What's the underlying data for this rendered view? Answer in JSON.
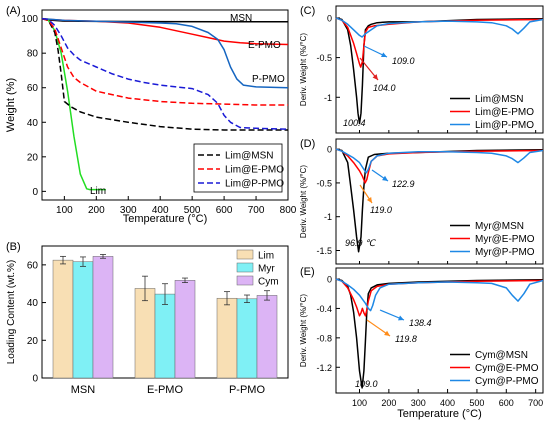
{
  "chart_data": [
    {
      "panel": "(A)",
      "type": "line",
      "xlabel": "Temperature (°C)",
      "ylabel": "Weight (%)",
      "xlim": [
        30,
        800
      ],
      "ylim": [
        -5,
        105
      ],
      "xticks": [
        100,
        200,
        300,
        400,
        500,
        600,
        700,
        800
      ],
      "yticks": [
        0,
        20,
        40,
        60,
        80,
        100
      ],
      "legend_position": "bottom-right",
      "legend": [
        "Lim@MSN",
        "Lim@E-PMO",
        "Lim@P-PMO"
      ],
      "annotations": [
        "MSN",
        "E-PMO",
        "P-PMO",
        "Lim"
      ],
      "series": [
        {
          "name": "MSN",
          "color": "#000000",
          "dash": "solid",
          "x": [
            30,
            50,
            100,
            200,
            400,
            600,
            800
          ],
          "y": [
            100,
            99.2,
            98.6,
            98.4,
            98.3,
            98.2,
            98.2
          ]
        },
        {
          "name": "E-PMO",
          "color": "#ff0000",
          "dash": "solid",
          "x": [
            30,
            60,
            100,
            200,
            300,
            400,
            500,
            550,
            600,
            650,
            700,
            800
          ],
          "y": [
            100,
            99.5,
            99,
            98.5,
            97.5,
            95,
            91,
            89,
            87,
            86,
            85.5,
            85
          ]
        },
        {
          "name": "P-PMO",
          "color": "#1565c0",
          "dash": "solid",
          "x": [
            30,
            100,
            200,
            300,
            400,
            450,
            500,
            550,
            580,
            600,
            620,
            640,
            660,
            700,
            800
          ],
          "y": [
            100,
            99,
            98.5,
            98,
            97.5,
            97,
            95.5,
            92,
            88,
            82,
            72,
            65,
            61.5,
            60.5,
            60
          ]
        },
        {
          "name": "Lim",
          "color": "#22dd22",
          "dash": "solid",
          "x": [
            30,
            50,
            70,
            90,
            110,
            130,
            150,
            170,
            180,
            230
          ],
          "y": [
            100,
            99,
            93,
            80,
            58,
            32,
            10,
            1.5,
            1,
            1
          ]
        },
        {
          "name": "Lim@MSN",
          "color": "#000000",
          "dash": "dashed",
          "x": [
            30,
            50,
            70,
            80,
            90,
            100,
            120,
            150,
            200,
            300,
            400,
            500,
            600,
            700,
            800
          ],
          "y": [
            100,
            99,
            92,
            82,
            68,
            52,
            49,
            46,
            43,
            40,
            37.5,
            36,
            35.5,
            35.5,
            35.5
          ]
        },
        {
          "name": "Lim@E-PMO",
          "color": "#ff0000",
          "dash": "dashed",
          "x": [
            30,
            50,
            70,
            90,
            110,
            130,
            150,
            200,
            300,
            400,
            500,
            600,
            700,
            800
          ],
          "y": [
            100,
            99,
            94,
            83,
            72,
            66,
            63,
            58,
            54,
            52,
            51,
            50.5,
            50,
            50
          ]
        },
        {
          "name": "Lim@P-PMO",
          "color": "#1a1ad6",
          "dash": "dashed",
          "x": [
            30,
            50,
            70,
            90,
            110,
            130,
            150,
            200,
            250,
            300,
            350,
            400,
            450,
            500,
            550,
            580,
            600,
            620,
            650,
            700,
            800
          ],
          "y": [
            100,
            99.5,
            96,
            90,
            83,
            79,
            76,
            72,
            68,
            65,
            63,
            61.5,
            60.5,
            59.5,
            56,
            51,
            44,
            40,
            37,
            36.5,
            36
          ]
        }
      ]
    },
    {
      "panel": "(B)",
      "type": "bar",
      "ylabel": "Loading Content (wt.%)",
      "ylim": [
        0,
        70
      ],
      "yticks": [
        0,
        20,
        40,
        60
      ],
      "categories": [
        "MSN",
        "E-PMO",
        "P-PMO"
      ],
      "legend_position": "top-right",
      "series": [
        {
          "name": "Lim",
          "color": "#f8dfb4",
          "values": [
            62.5,
            47.5,
            42.3
          ],
          "errors": [
            2.0,
            6.5,
            3.5
          ]
        },
        {
          "name": "Myr",
          "color": "#7ff0f5",
          "values": [
            61.7,
            44.5,
            42.0
          ],
          "errors": [
            2.5,
            5.5,
            2.0
          ]
        },
        {
          "name": "Cym",
          "color": "#dcb4f5",
          "values": [
            64.5,
            51.8,
            43.8
          ],
          "errors": [
            1.0,
            1.2,
            2.5
          ]
        }
      ]
    },
    {
      "panel": "(C)",
      "type": "line",
      "ylabel": "Deriv. Weight (%/°C)",
      "xlim": [
        20,
        725
      ],
      "ylim": [
        -1.45,
        0.15
      ],
      "yticks": [
        0.0,
        -0.5,
        -1.0
      ],
      "legend_position": "bottom-right",
      "legend": [
        "Lim@MSN",
        "Lim@E-PMO",
        "Lim@P-PMO"
      ],
      "annotations": [
        "100.4",
        "104.0",
        "109.0"
      ],
      "series": [
        {
          "name": "Lim@MSN",
          "color": "#000000",
          "x": [
            20,
            40,
            60,
            70,
            80,
            90,
            95,
            100,
            105,
            110,
            115,
            120,
            130,
            140,
            160,
            200,
            300,
            500,
            725
          ],
          "y": [
            0,
            -0.02,
            -0.15,
            -0.35,
            -0.65,
            -1.0,
            -1.2,
            -1.33,
            -1.2,
            -0.85,
            -0.35,
            -0.15,
            -0.1,
            -0.08,
            -0.06,
            -0.05,
            -0.05,
            -0.02,
            -0.01
          ]
        },
        {
          "name": "Lim@E-PMO",
          "color": "#ff0000",
          "x": [
            20,
            40,
            60,
            70,
            80,
            90,
            100,
            104,
            110,
            115,
            120,
            130,
            150,
            200,
            300,
            500,
            725
          ],
          "y": [
            0,
            -0.03,
            -0.12,
            -0.22,
            -0.32,
            -0.45,
            -0.58,
            -0.62,
            -0.55,
            -0.35,
            -0.18,
            -0.12,
            -0.1,
            -0.08,
            -0.05,
            -0.03,
            -0.02
          ]
        },
        {
          "name": "Lim@P-PMO",
          "color": "#1e88e5",
          "x": [
            20,
            40,
            60,
            80,
            100,
            109,
            120,
            140,
            160,
            200,
            300,
            400,
            500,
            550,
            600,
            620,
            640,
            660,
            680,
            725
          ],
          "y": [
            0,
            -0.03,
            -0.08,
            -0.15,
            -0.22,
            -0.24,
            -0.2,
            -0.15,
            -0.1,
            -0.07,
            -0.05,
            -0.04,
            -0.05,
            -0.06,
            -0.1,
            -0.14,
            -0.2,
            -0.13,
            -0.05,
            -0.02
          ]
        }
      ]
    },
    {
      "panel": "(D)",
      "type": "line",
      "ylabel": "Deriv. Weight (%/°C)",
      "xlim": [
        20,
        725
      ],
      "ylim": [
        -1.7,
        0.15
      ],
      "yticks": [
        0.0,
        -0.5,
        -1.0,
        -1.5
      ],
      "legend_position": "bottom-right",
      "legend": [
        "Myr@MSN",
        "Myr@E-PMO",
        "Myr@P-PMO"
      ],
      "annotations": [
        "96.9 ℃",
        "119.0",
        "122.9"
      ],
      "series": [
        {
          "name": "Myr@MSN",
          "color": "#000000",
          "x": [
            20,
            40,
            60,
            70,
            80,
            90,
            97,
            105,
            110,
            115,
            120,
            130,
            150,
            200,
            300,
            500,
            725
          ],
          "y": [
            0,
            -0.02,
            -0.2,
            -0.55,
            -0.9,
            -1.3,
            -1.52,
            -1.3,
            -0.9,
            -0.55,
            -0.3,
            -0.12,
            -0.08,
            -0.06,
            -0.05,
            -0.02,
            -0.01
          ]
        },
        {
          "name": "Myr@E-PMO",
          "color": "#ff0000",
          "x": [
            20,
            40,
            60,
            80,
            100,
            110,
            119,
            125,
            130,
            140,
            160,
            200,
            300,
            500,
            725
          ],
          "y": [
            0,
            -0.03,
            -0.1,
            -0.2,
            -0.32,
            -0.4,
            -0.5,
            -0.45,
            -0.35,
            -0.18,
            -0.1,
            -0.07,
            -0.05,
            -0.03,
            -0.02
          ]
        },
        {
          "name": "Myr@P-PMO",
          "color": "#1e88e5",
          "x": [
            20,
            40,
            60,
            80,
            100,
            115,
            123,
            130,
            140,
            160,
            200,
            300,
            400,
            500,
            550,
            600,
            620,
            640,
            660,
            680,
            725
          ],
          "y": [
            0,
            -0.03,
            -0.08,
            -0.13,
            -0.2,
            -0.3,
            -0.35,
            -0.3,
            -0.18,
            -0.1,
            -0.06,
            -0.04,
            -0.04,
            -0.05,
            -0.06,
            -0.1,
            -0.14,
            -0.2,
            -0.13,
            -0.05,
            -0.02
          ]
        }
      ]
    },
    {
      "panel": "(E)",
      "type": "line",
      "xlabel": "Temperature (°C)",
      "ylabel": "Deriv. Weight (%/°C)",
      "xlim": [
        20,
        725
      ],
      "xticks": [
        100,
        200,
        300,
        400,
        500,
        600,
        700
      ],
      "ylim": [
        -1.55,
        0.15
      ],
      "yticks": [
        0.0,
        -0.4,
        -0.8,
        -1.2
      ],
      "legend_position": "bottom-right",
      "legend": [
        "Cym@MSN",
        "Cym@E-PMO",
        "Cym@P-PMO"
      ],
      "annotations": [
        "109.0",
        "119.8",
        "138.4"
      ],
      "series": [
        {
          "name": "Cym@MSN",
          "color": "#000000",
          "x": [
            20,
            40,
            60,
            70,
            80,
            90,
            100,
            109,
            115,
            120,
            125,
            130,
            140,
            160,
            200,
            300,
            500,
            725
          ],
          "y": [
            0,
            -0.02,
            -0.1,
            -0.22,
            -0.45,
            -0.8,
            -1.25,
            -1.48,
            -1.25,
            -0.85,
            -0.45,
            -0.2,
            -0.12,
            -0.08,
            -0.06,
            -0.04,
            -0.02,
            -0.01
          ]
        },
        {
          "name": "Cym@E-PMO",
          "color": "#ff0000",
          "x": [
            20,
            40,
            60,
            80,
            90,
            100,
            105,
            110,
            115,
            120,
            125,
            130,
            140,
            160,
            200,
            300,
            500,
            725
          ],
          "y": [
            0,
            -0.03,
            -0.12,
            -0.28,
            -0.38,
            -0.5,
            -0.46,
            -0.4,
            -0.46,
            -0.5,
            -0.42,
            -0.3,
            -0.16,
            -0.1,
            -0.07,
            -0.05,
            -0.03,
            -0.02
          ]
        },
        {
          "name": "Cym@P-PMO",
          "color": "#1e88e5",
          "x": [
            20,
            40,
            60,
            80,
            100,
            120,
            130,
            138,
            145,
            155,
            170,
            200,
            300,
            400,
            500,
            550,
            600,
            620,
            640,
            660,
            680,
            725
          ],
          "y": [
            0,
            -0.03,
            -0.08,
            -0.14,
            -0.22,
            -0.33,
            -0.4,
            -0.43,
            -0.36,
            -0.22,
            -0.12,
            -0.07,
            -0.05,
            -0.04,
            -0.05,
            -0.06,
            -0.12,
            -0.22,
            -0.3,
            -0.2,
            -0.07,
            -0.02
          ]
        }
      ]
    }
  ]
}
